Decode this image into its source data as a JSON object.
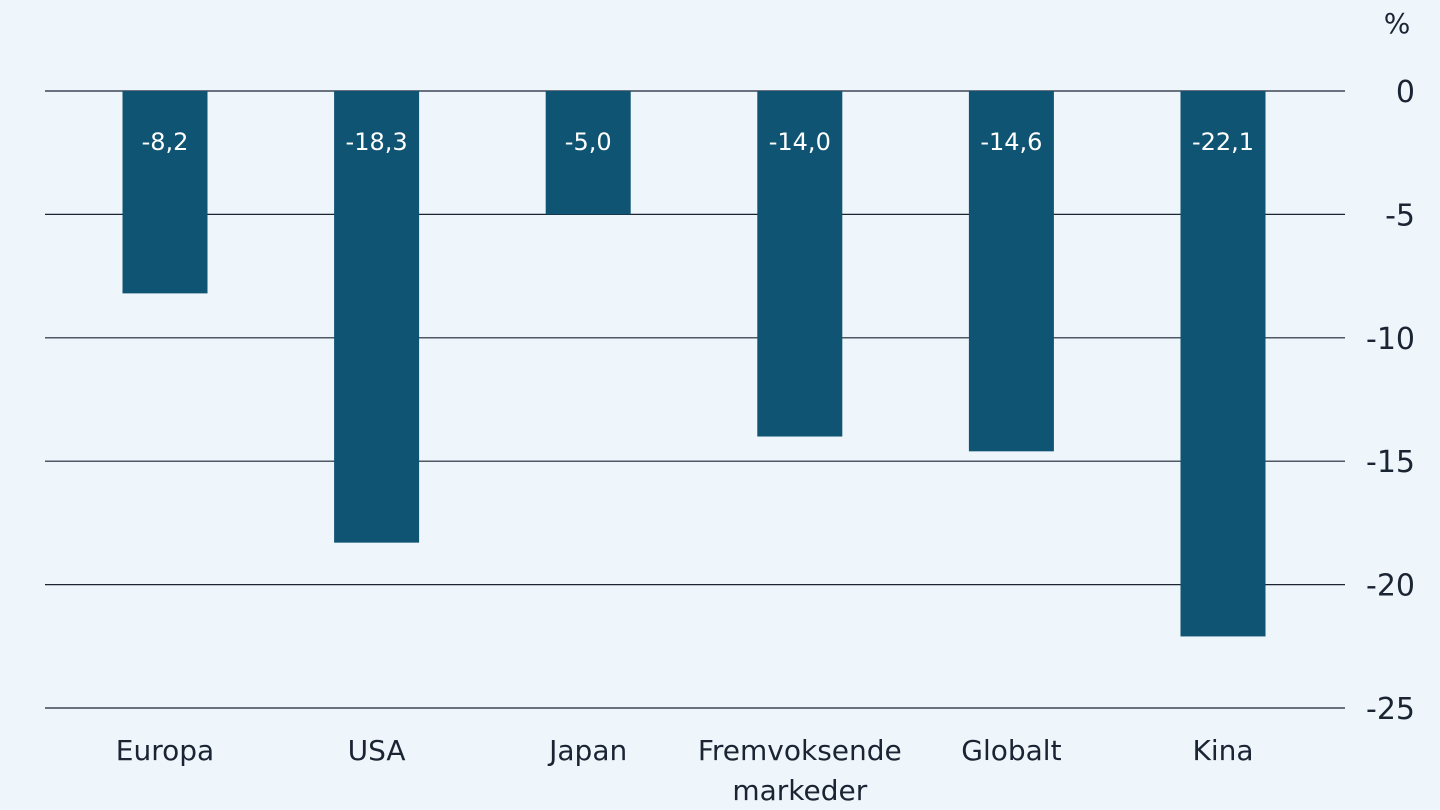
{
  "chart_data": {
    "type": "bar",
    "title": "",
    "xlabel": "",
    "ylabel": "%",
    "categories": [
      "Europa",
      "USA",
      "Japan",
      "Fremvoksende markeder",
      "Globalt",
      "Kina"
    ],
    "category_lines": [
      [
        "Europa"
      ],
      [
        "USA"
      ],
      [
        "Japan"
      ],
      [
        "Fremvoksende",
        "markeder"
      ],
      [
        "Globalt"
      ],
      [
        "Kina"
      ]
    ],
    "values": [
      -8.2,
      -18.3,
      -5.0,
      -14.0,
      -14.6,
      -22.1
    ],
    "value_labels": [
      "-8,2",
      "-18,3",
      "-5,0",
      "-14,0",
      "-14,6",
      "-22,1"
    ],
    "yticks": [
      0,
      -5,
      -10,
      -15,
      -20,
      -25
    ],
    "ytick_labels": [
      "0",
      "-5",
      "-10",
      "-15",
      "-20",
      "-25"
    ],
    "ylim": [
      -25,
      0
    ],
    "grid": true,
    "legend": "none",
    "colors": {
      "bar": "#0f5472",
      "background": "#eef5fb",
      "text": "#1a2433",
      "bar_label": "#ffffff"
    }
  }
}
